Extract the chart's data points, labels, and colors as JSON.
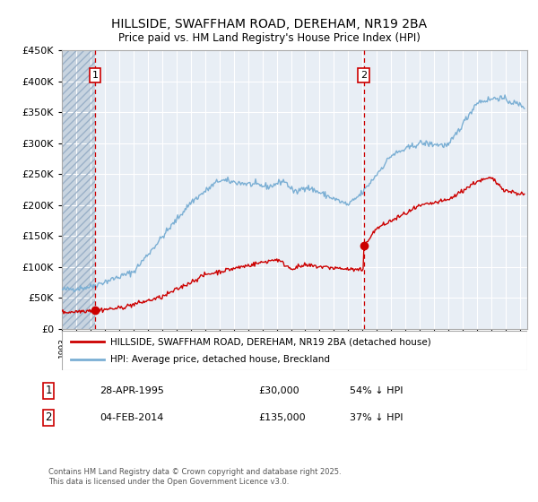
{
  "title1": "HILLSIDE, SWAFFHAM ROAD, DEREHAM, NR19 2BA",
  "title2": "Price paid vs. HM Land Registry's House Price Index (HPI)",
  "ylim": [
    0,
    450000
  ],
  "xlim_start": 1993.0,
  "xlim_end": 2025.5,
  "sale1_date": 1995.32,
  "sale1_price": 30000,
  "sale2_date": 2014.09,
  "sale2_price": 135000,
  "legend_house": "HILLSIDE, SWAFFHAM ROAD, DEREHAM, NR19 2BA (detached house)",
  "legend_hpi": "HPI: Average price, detached house, Breckland",
  "footer": "Contains HM Land Registry data © Crown copyright and database right 2025.\nThis data is licensed under the Open Government Licence v3.0.",
  "house_color": "#cc0000",
  "hpi_color": "#7bafd4",
  "background_plot": "#e8eef5",
  "hatch_color": "#c8d4e0",
  "grid_color": "#ffffff",
  "dashed_color": "#cc0000"
}
